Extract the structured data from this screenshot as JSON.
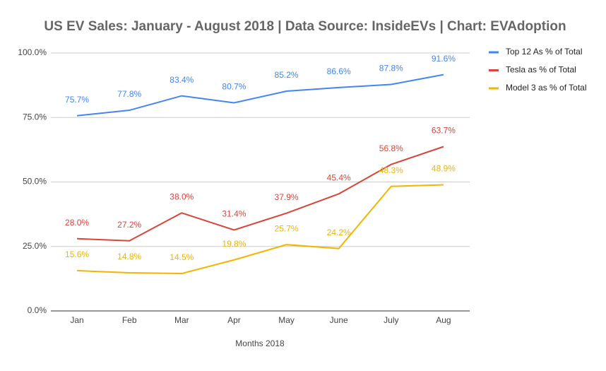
{
  "chart_data": {
    "type": "line",
    "title": "US EV Sales: January - August 2018 | Data Source: InsideEVs | Chart: EVAdoption",
    "x_label": "Months 2018",
    "categories": [
      "Jan",
      "Feb",
      "Mar",
      "Apr",
      "May",
      "June",
      "July",
      "Aug"
    ],
    "series": [
      {
        "name": "Top 12 As % of Total",
        "color": "#4285f4",
        "values": [
          75.7,
          77.8,
          83.4,
          80.7,
          85.2,
          86.6,
          87.8,
          91.6
        ],
        "value_labels": [
          "75.7%",
          "77.8%",
          "83.4%",
          "80.7%",
          "85.2%",
          "86.6%",
          "87.8%",
          "91.6%"
        ]
      },
      {
        "name": "Tesla as % of Total",
        "color": "#db4437",
        "values": [
          28.0,
          27.2,
          38.0,
          31.4,
          37.9,
          45.4,
          56.8,
          63.7
        ],
        "value_labels": [
          "28.0%",
          "27.2%",
          "38.0%",
          "31.4%",
          "37.9%",
          "45.4%",
          "56.8%",
          "63.7%"
        ]
      },
      {
        "name": "Model 3 as % of Total",
        "color": "#f4b400",
        "values": [
          15.6,
          14.8,
          14.5,
          19.8,
          25.7,
          24.2,
          48.3,
          48.9
        ],
        "value_labels": [
          "15.6%",
          "14.8%",
          "14.5%",
          "19.8%",
          "25.7%",
          "24.2%",
          "48.3%",
          "48.9%"
        ]
      }
    ],
    "ylim": [
      0,
      100
    ],
    "yticks": [
      {
        "value": 0,
        "label": "0.0%"
      },
      {
        "value": 25,
        "label": "25.0%"
      },
      {
        "value": 50,
        "label": "50.0%"
      },
      {
        "value": 75,
        "label": "75.0%"
      },
      {
        "value": 100,
        "label": "100.0%"
      }
    ],
    "grid": true,
    "legend": "right"
  }
}
